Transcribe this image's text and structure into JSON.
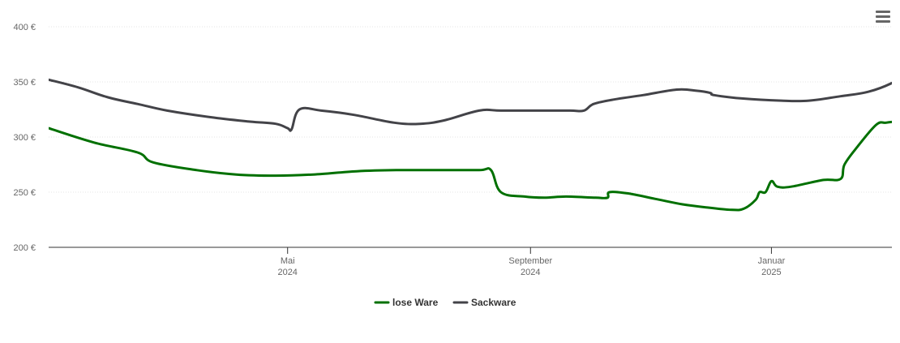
{
  "menu": {
    "icon": "hamburger-menu-icon"
  },
  "chart_data": {
    "type": "line",
    "title": "",
    "xlabel": "",
    "ylabel": "",
    "ylim": [
      200,
      400
    ],
    "xlim": [
      "2024-01-01",
      "2025-03-03"
    ],
    "grid": true,
    "legend_position": "bottom-center",
    "y_ticks": [
      {
        "value": 200,
        "label": "200 €"
      },
      {
        "value": 250,
        "label": "250 €"
      },
      {
        "value": 300,
        "label": "300 €"
      },
      {
        "value": 350,
        "label": "350 €"
      },
      {
        "value": 400,
        "label": "400 €"
      }
    ],
    "x_ticks": [
      {
        "date": "2024-05-01",
        "month": "Mai",
        "year": "2024"
      },
      {
        "date": "2024-09-01",
        "month": "September",
        "year": "2024"
      },
      {
        "date": "2025-01-01",
        "month": "Januar",
        "year": "2025"
      }
    ],
    "series": [
      {
        "name": "lose Ware",
        "color": "#007000",
        "points": [
          [
            "2024-01-01",
            308
          ],
          [
            "2024-01-24",
            295
          ],
          [
            "2024-02-15",
            286
          ],
          [
            "2024-02-23",
            277
          ],
          [
            "2024-03-16",
            270
          ],
          [
            "2024-04-05",
            266
          ],
          [
            "2024-04-25",
            265
          ],
          [
            "2024-05-14",
            266
          ],
          [
            "2024-06-05",
            269
          ],
          [
            "2024-06-25",
            270
          ],
          [
            "2024-07-16",
            270
          ],
          [
            "2024-08-06",
            270
          ],
          [
            "2024-08-12",
            270
          ],
          [
            "2024-08-17",
            250
          ],
          [
            "2024-08-29",
            246
          ],
          [
            "2024-09-08",
            245
          ],
          [
            "2024-09-19",
            246
          ],
          [
            "2024-10-04",
            245
          ],
          [
            "2024-10-10",
            245
          ],
          [
            "2024-10-11",
            250
          ],
          [
            "2024-10-20",
            249
          ],
          [
            "2024-11-03",
            244
          ],
          [
            "2024-11-17",
            239
          ],
          [
            "2024-11-30",
            236
          ],
          [
            "2024-12-12",
            234
          ],
          [
            "2024-12-18",
            235
          ],
          [
            "2024-12-24",
            243
          ],
          [
            "2024-12-26",
            250
          ],
          [
            "2024-12-29",
            250
          ],
          [
            "2025-01-01",
            260
          ],
          [
            "2025-01-04",
            255
          ],
          [
            "2025-01-11",
            255
          ],
          [
            "2025-01-27",
            261
          ],
          [
            "2025-02-05",
            262
          ],
          [
            "2025-02-07",
            275
          ],
          [
            "2025-02-13",
            290
          ],
          [
            "2025-02-23",
            311
          ],
          [
            "2025-02-28",
            313
          ],
          [
            "2025-03-05",
            314
          ],
          [
            "2025-03-09",
            314
          ],
          [
            "2025-03-12",
            325
          ]
        ]
      },
      {
        "name": "Sackware",
        "color": "#434348",
        "points": [
          [
            "2024-01-01",
            352
          ],
          [
            "2024-01-16",
            345
          ],
          [
            "2024-01-31",
            336
          ],
          [
            "2024-02-15",
            330
          ],
          [
            "2024-03-01",
            324
          ],
          [
            "2024-03-23",
            318
          ],
          [
            "2024-04-12",
            314
          ],
          [
            "2024-04-25",
            312
          ],
          [
            "2024-05-01",
            308
          ],
          [
            "2024-05-03",
            307
          ],
          [
            "2024-05-07",
            325
          ],
          [
            "2024-05-18",
            324
          ],
          [
            "2024-06-04",
            320
          ],
          [
            "2024-06-24",
            313
          ],
          [
            "2024-07-07",
            312
          ],
          [
            "2024-07-19",
            315
          ],
          [
            "2024-08-06",
            324
          ],
          [
            "2024-08-17",
            324
          ],
          [
            "2024-09-04",
            324
          ],
          [
            "2024-09-21",
            324
          ],
          [
            "2024-09-28",
            324
          ],
          [
            "2024-10-03",
            330
          ],
          [
            "2024-10-13",
            334
          ],
          [
            "2024-10-28",
            338
          ],
          [
            "2024-11-14",
            343
          ],
          [
            "2024-11-24",
            342
          ],
          [
            "2024-12-01",
            340
          ],
          [
            "2024-12-03",
            338
          ],
          [
            "2024-12-17",
            335
          ],
          [
            "2025-01-06",
            333
          ],
          [
            "2025-01-20",
            333
          ],
          [
            "2025-02-05",
            337
          ],
          [
            "2025-02-19",
            341
          ],
          [
            "2025-03-03",
            349
          ],
          [
            "2025-03-07",
            355
          ],
          [
            "2025-03-11",
            368
          ],
          [
            "2025-03-16",
            346
          ]
        ]
      }
    ]
  }
}
